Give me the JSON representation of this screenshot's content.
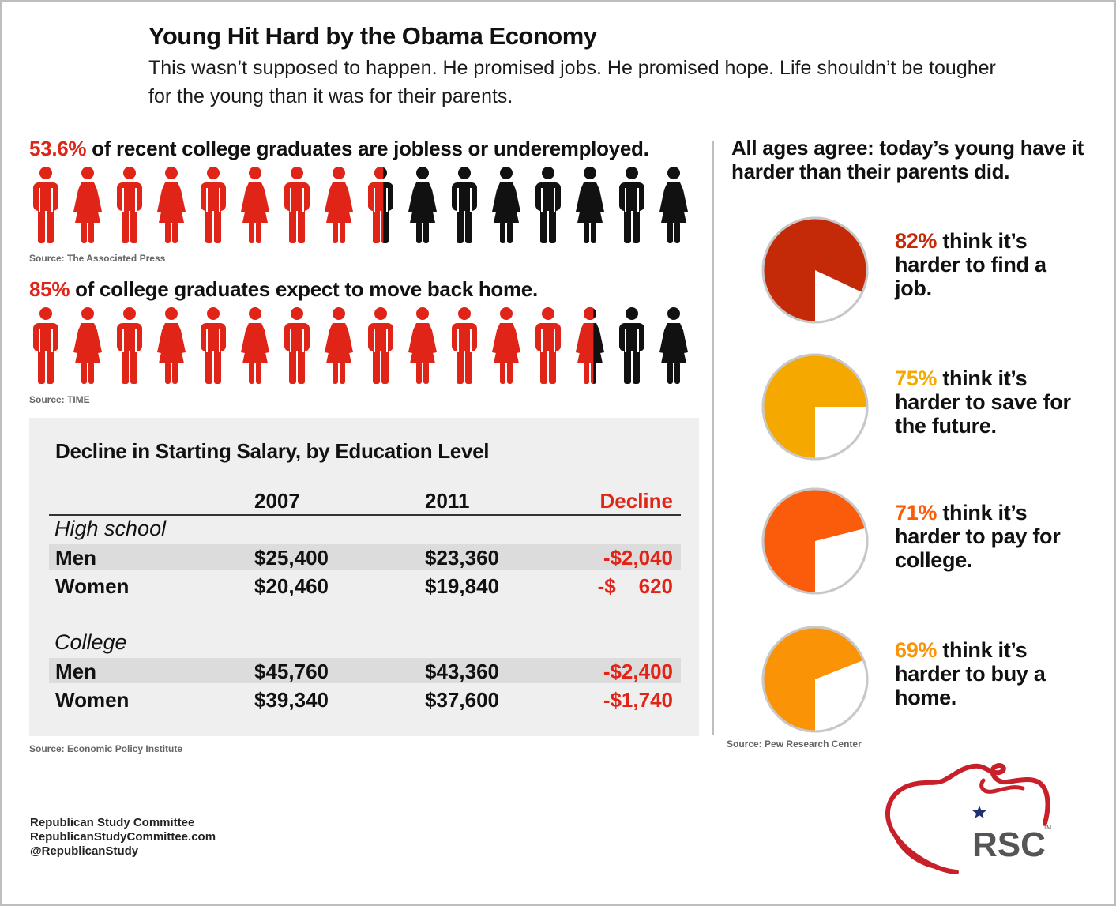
{
  "header": {
    "title": "Young Hit Hard by the Obama Economy",
    "subtitle": "This wasn’t supposed to happen. He promised jobs. He promised hope. Life shouldn’t be tougher for the young than it was for their parents."
  },
  "colors": {
    "accent_red": "#e02418",
    "figure_black": "#111111",
    "pie_82": "#c42a08",
    "pie_75": "#f5a800",
    "pie_71": "#fb5c0c",
    "pie_69": "#fb9307",
    "logo_red": "#c8202a",
    "logo_star": "#1f2f6e"
  },
  "stat1": {
    "pct": "53.6%",
    "text": " of recent college graduates are jobless or underemployed.",
    "source": "Source: The Associated Press",
    "figure_count": 16,
    "filled_percent": 53.6,
    "icons": [
      "man-figure-icon",
      "woman-figure-icon"
    ]
  },
  "stat2": {
    "pct": "85%",
    "text": " of college graduates expect to move back home.",
    "source": "Source: TIME",
    "figure_count": 16,
    "filled_percent": 85,
    "icons": [
      "man-figure-icon",
      "woman-figure-icon"
    ]
  },
  "table": {
    "title": "Decline in Starting Salary, by Education Level",
    "headers": [
      "",
      "2007",
      "2011",
      "Decline"
    ],
    "groups": [
      {
        "name": "High school",
        "rows": [
          {
            "label": "Men",
            "y2007": "$25,400",
            "y2011": "$23,360",
            "decline": "-$2,040"
          },
          {
            "label": "Women",
            "y2007": "$20,460",
            "y2011": "$19,840",
            "decline": "-$    620"
          }
        ]
      },
      {
        "name": "College",
        "rows": [
          {
            "label": "Men",
            "y2007": "$45,760",
            "y2011": "$43,360",
            "decline": "-$2,400"
          },
          {
            "label": "Women",
            "y2007": "$39,340",
            "y2011": "$37,600",
            "decline": "-$1,740"
          }
        ]
      }
    ],
    "source": "Source: Economic Policy Institute"
  },
  "right": {
    "heading": "All ages agree: today’s young have it harder than their parents did.",
    "source": "Source: Pew Research Center",
    "items": [
      {
        "pct": "82%",
        "text": " think it’s harder to find a job."
      },
      {
        "pct": "75%",
        "text": " think it’s harder to save for the future."
      },
      {
        "pct": "71%",
        "text": " think it’s harder to pay for college."
      },
      {
        "pct": "69%",
        "text": " think it’s harder to buy a home."
      }
    ]
  },
  "footer": {
    "line1": "Republican Study Committee",
    "line2": "RepublicanStudyCommittee.com",
    "line3": "@RepublicanStudy"
  },
  "logo": {
    "text": "RSC",
    "tm": "TM",
    "icon": "rsc-elephant-logo"
  },
  "chart_data": [
    {
      "type": "pictograph",
      "title": "53.6% of recent college graduates are jobless or underemployed.",
      "value_percent": 53.6,
      "units": 16
    },
    {
      "type": "pictograph",
      "title": "85% of college graduates expect to move back home.",
      "value_percent": 85,
      "units": 16
    },
    {
      "type": "table",
      "title": "Decline in Starting Salary, by Education Level",
      "columns": [
        "2007",
        "2011",
        "Decline"
      ],
      "rows": [
        {
          "group": "High school",
          "label": "Men",
          "values": [
            25400,
            23360,
            -2040
          ]
        },
        {
          "group": "High school",
          "label": "Women",
          "values": [
            20460,
            19840,
            -620
          ]
        },
        {
          "group": "College",
          "label": "Men",
          "values": [
            45760,
            43360,
            -2400
          ]
        },
        {
          "group": "College",
          "label": "Women",
          "values": [
            39340,
            37600,
            -1740
          ]
        }
      ]
    },
    {
      "type": "pie",
      "title": "All ages agree: today’s young have it harder than their parents did.",
      "slices": [
        {
          "label": "harder to find a job",
          "value": 82
        },
        {
          "label": "harder to save for the future",
          "value": 75
        },
        {
          "label": "harder to pay for college",
          "value": 71
        },
        {
          "label": "harder to buy a home",
          "value": 69
        }
      ]
    }
  ]
}
